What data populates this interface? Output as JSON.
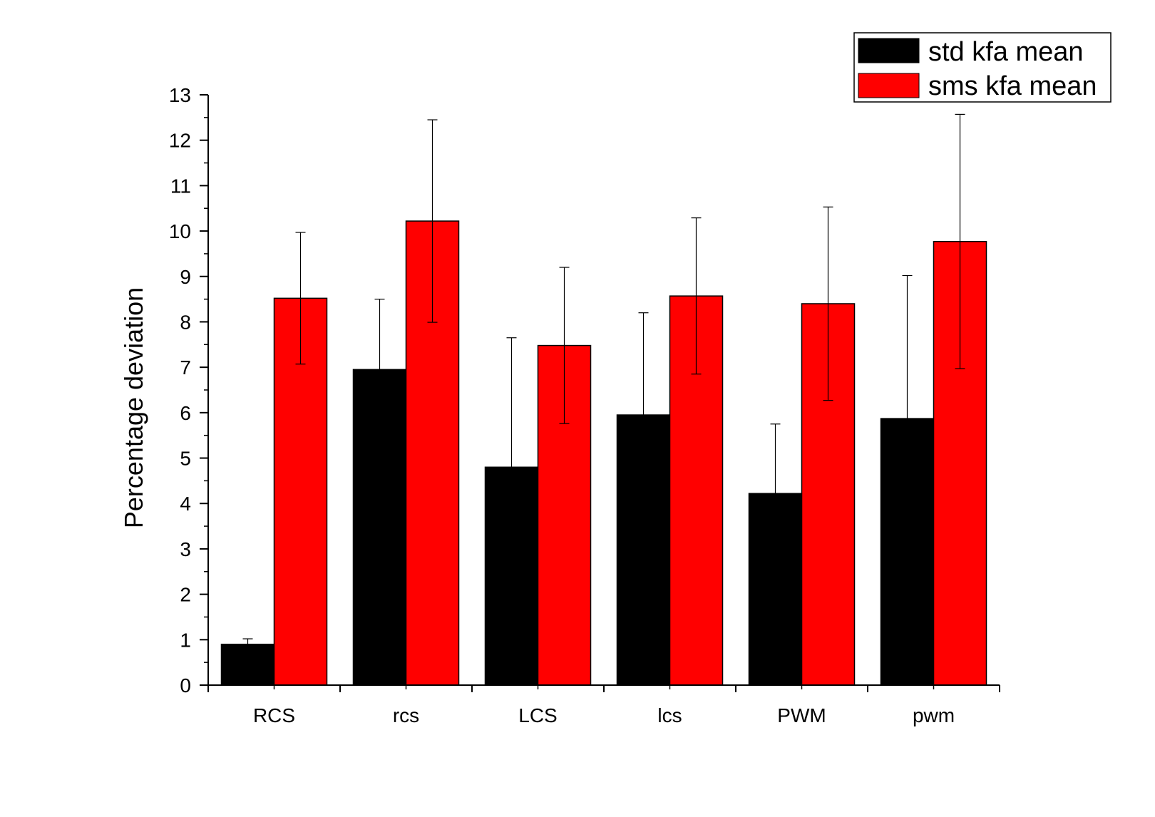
{
  "chart_data": {
    "type": "bar",
    "title": "",
    "xlabel": "",
    "ylabel": "Percentage deviation",
    "ylim": [
      0,
      13
    ],
    "yticks": [
      0,
      1,
      2,
      3,
      4,
      5,
      6,
      7,
      8,
      9,
      10,
      11,
      12,
      13
    ],
    "categories": [
      "RCS",
      "rcs",
      "LCS",
      "lcs",
      "PWM",
      "pwm"
    ],
    "series": [
      {
        "name": "std kfa mean",
        "color": "#000000",
        "values": [
          0.9,
          6.95,
          4.8,
          5.95,
          4.22,
          5.87
        ],
        "error": [
          0.12,
          1.55,
          2.85,
          2.25,
          1.53,
          3.15
        ]
      },
      {
        "name": "sms kfa mean",
        "color": "#ff0000",
        "values": [
          8.52,
          10.22,
          7.48,
          8.57,
          8.4,
          9.77
        ],
        "error": [
          1.45,
          2.23,
          1.72,
          1.72,
          2.13,
          2.8
        ]
      }
    ],
    "legend": "top-right",
    "grid": false
  }
}
